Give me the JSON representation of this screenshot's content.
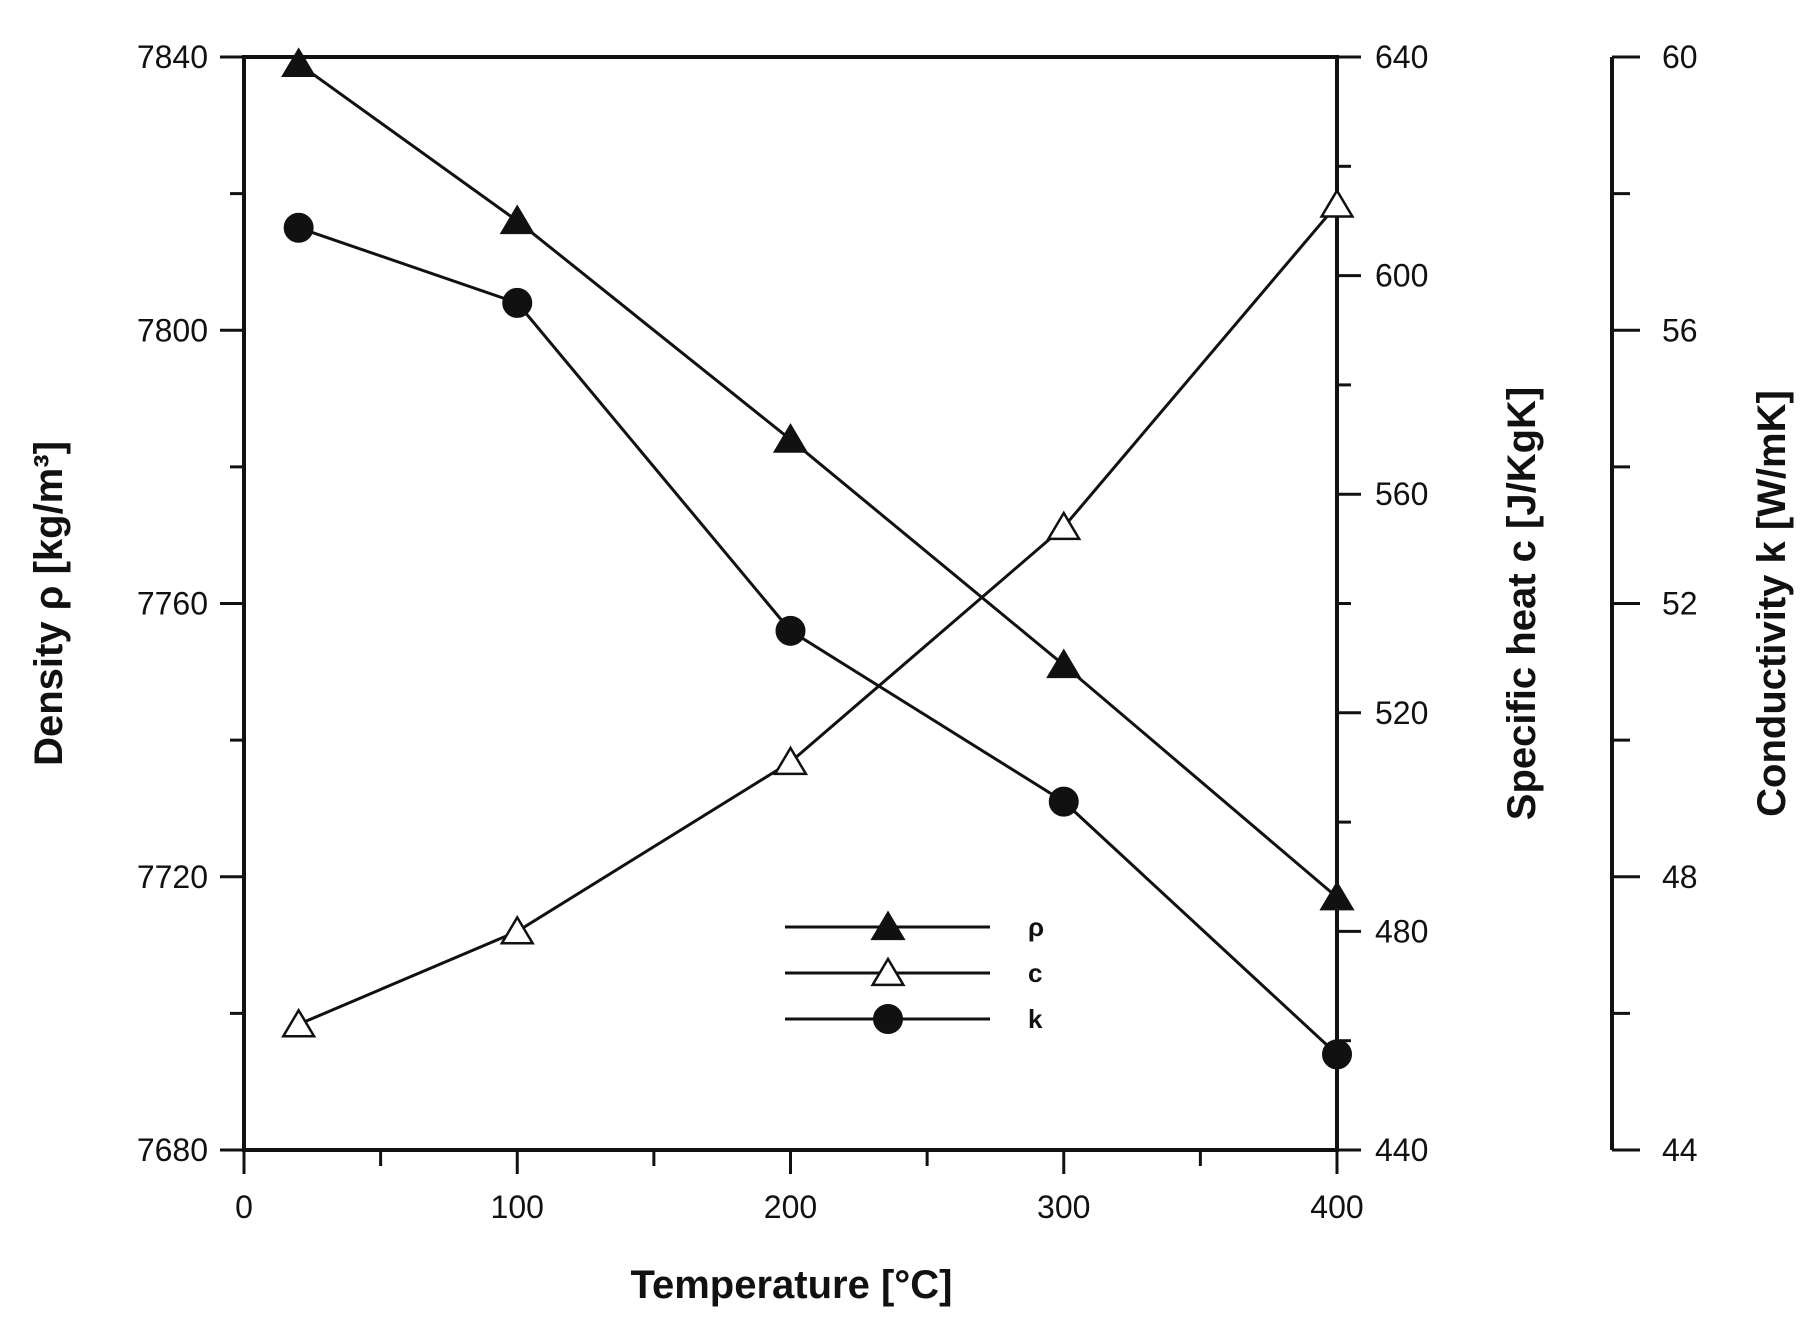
{
  "chart_data": {
    "type": "line",
    "title": "",
    "xlabel": "Temperature  [°C]",
    "xlim": [
      0,
      400
    ],
    "x_ticks": [
      "0",
      "100",
      "200",
      "300",
      "400"
    ],
    "grid": false,
    "legend_position": "bottom-center",
    "axes": {
      "density": {
        "label": "Density ρ [kg/m³]",
        "ylim": [
          7680,
          7840
        ],
        "ticks": [
          "7680",
          "7720",
          "7760",
          "7800",
          "7840"
        ]
      },
      "specific_heat": {
        "label": "Specific heat c [J/KgK]",
        "ylim": [
          440,
          640
        ],
        "ticks": [
          "440",
          "480",
          "520",
          "560",
          "600",
          "640"
        ]
      },
      "conductivity": {
        "label": "Conductivity k [W/mK]",
        "ylim": [
          44,
          60
        ],
        "ticks": [
          "44",
          "48",
          "52",
          "56",
          "60"
        ]
      }
    },
    "series": [
      {
        "name": "ρ",
        "axis": "density",
        "marker": "filled-triangle",
        "x": [
          20,
          100,
          200,
          300,
          400
        ],
        "values": [
          7839,
          7816,
          7784,
          7751,
          7717
        ]
      },
      {
        "name": "c",
        "axis": "specific_heat",
        "marker": "open-triangle",
        "x": [
          20,
          100,
          200,
          300,
          400
        ],
        "values": [
          463,
          480,
          511,
          554,
          613
        ]
      },
      {
        "name": "k",
        "axis": "conductivity",
        "marker": "filled-circle",
        "x": [
          20,
          100,
          200,
          300,
          400
        ],
        "values": [
          57.5,
          56.4,
          51.6,
          49.1,
          45.4
        ]
      }
    ],
    "colors": {
      "line": "#111111",
      "background": "#ffffff"
    }
  }
}
